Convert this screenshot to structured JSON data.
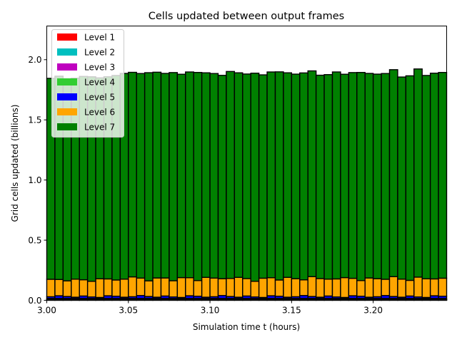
{
  "chart_data": {
    "type": "bar",
    "stacked": true,
    "title": "Cells updated between output frames",
    "xlabel": "Simulation time t (hours)",
    "ylabel": "Grid cells updated (billions)",
    "xlim": [
      3.0,
      3.245
    ],
    "ylim": [
      0.0,
      2.28
    ],
    "xticks": [
      3.0,
      3.05,
      3.1,
      3.15,
      3.2
    ],
    "xtick_labels": [
      "3.00",
      "3.05",
      "3.10",
      "3.15",
      "3.20"
    ],
    "yticks": [
      0.0,
      0.5,
      1.0,
      1.5,
      2.0
    ],
    "ytick_labels": [
      "0.0",
      "0.5",
      "1.0",
      "1.5",
      "2.0"
    ],
    "bar_width": 0.005,
    "legend_position": "upper-left",
    "x": [
      3.0025,
      3.0075,
      3.0125,
      3.0175,
      3.0225,
      3.0275,
      3.0325,
      3.0375,
      3.0425,
      3.0475,
      3.0525,
      3.0575,
      3.0625,
      3.0675,
      3.0725,
      3.0775,
      3.0825,
      3.0875,
      3.0925,
      3.0975,
      3.1025,
      3.1075,
      3.1125,
      3.1175,
      3.1225,
      3.1275,
      3.1325,
      3.1375,
      3.1425,
      3.1475,
      3.1525,
      3.1575,
      3.1625,
      3.1675,
      3.1725,
      3.1775,
      3.1825,
      3.1875,
      3.1925,
      3.1975,
      3.2025,
      3.2075,
      3.2125,
      3.2175,
      3.2225,
      3.2275,
      3.2325,
      3.2375,
      3.2425
    ],
    "series": [
      {
        "name": "Level 1",
        "color": "#ff0000",
        "values": [
          0.002,
          0.002,
          0.002,
          0.002,
          0.002,
          0.002,
          0.002,
          0.002,
          0.002,
          0.002,
          0.002,
          0.002,
          0.002,
          0.002,
          0.002,
          0.002,
          0.002,
          0.002,
          0.002,
          0.002,
          0.002,
          0.002,
          0.002,
          0.002,
          0.002,
          0.002,
          0.002,
          0.002,
          0.002,
          0.002,
          0.002,
          0.002,
          0.002,
          0.002,
          0.002,
          0.002,
          0.002,
          0.002,
          0.002,
          0.002,
          0.002,
          0.002,
          0.002,
          0.002,
          0.002,
          0.002,
          0.002,
          0.002,
          0.002
        ]
      },
      {
        "name": "Level 2",
        "color": "#00bfbf",
        "values": [
          0.002,
          0.002,
          0.002,
          0.002,
          0.002,
          0.002,
          0.002,
          0.002,
          0.002,
          0.002,
          0.002,
          0.002,
          0.002,
          0.002,
          0.002,
          0.002,
          0.002,
          0.002,
          0.002,
          0.002,
          0.002,
          0.002,
          0.002,
          0.002,
          0.002,
          0.002,
          0.002,
          0.002,
          0.002,
          0.002,
          0.002,
          0.002,
          0.002,
          0.002,
          0.002,
          0.002,
          0.002,
          0.002,
          0.002,
          0.002,
          0.002,
          0.002,
          0.002,
          0.002,
          0.002,
          0.002,
          0.002,
          0.002,
          0.002
        ]
      },
      {
        "name": "Level 3",
        "color": "#bf00bf",
        "values": [
          0.004,
          0.004,
          0.004,
          0.004,
          0.004,
          0.004,
          0.004,
          0.004,
          0.004,
          0.004,
          0.004,
          0.004,
          0.004,
          0.004,
          0.004,
          0.004,
          0.004,
          0.004,
          0.004,
          0.004,
          0.004,
          0.004,
          0.004,
          0.004,
          0.004,
          0.004,
          0.004,
          0.004,
          0.004,
          0.004,
          0.004,
          0.004,
          0.004,
          0.004,
          0.004,
          0.004,
          0.004,
          0.004,
          0.004,
          0.004,
          0.004,
          0.004,
          0.004,
          0.004,
          0.004,
          0.004,
          0.004,
          0.004,
          0.004
        ]
      },
      {
        "name": "Level 4",
        "color": "#32cd32",
        "values": [
          0.008,
          0.008,
          0.008,
          0.008,
          0.008,
          0.008,
          0.008,
          0.008,
          0.008,
          0.008,
          0.008,
          0.008,
          0.008,
          0.008,
          0.008,
          0.008,
          0.008,
          0.008,
          0.008,
          0.008,
          0.008,
          0.008,
          0.008,
          0.008,
          0.008,
          0.008,
          0.008,
          0.008,
          0.008,
          0.008,
          0.008,
          0.008,
          0.008,
          0.008,
          0.008,
          0.008,
          0.008,
          0.008,
          0.008,
          0.008,
          0.008,
          0.008,
          0.008,
          0.008,
          0.008,
          0.008,
          0.008,
          0.008,
          0.008
        ]
      },
      {
        "name": "Level 5",
        "color": "#0000ff",
        "values": [
          0.014,
          0.022,
          0.016,
          0.01,
          0.02,
          0.012,
          0.008,
          0.022,
          0.018,
          0.01,
          0.014,
          0.024,
          0.016,
          0.01,
          0.02,
          0.012,
          0.008,
          0.022,
          0.018,
          0.01,
          0.014,
          0.024,
          0.016,
          0.01,
          0.02,
          0.012,
          0.008,
          0.022,
          0.018,
          0.01,
          0.014,
          0.024,
          0.016,
          0.01,
          0.02,
          0.012,
          0.008,
          0.022,
          0.018,
          0.01,
          0.014,
          0.024,
          0.016,
          0.01,
          0.02,
          0.012,
          0.008,
          0.022,
          0.018
        ]
      },
      {
        "name": "Level 6",
        "color": "#ffa500",
        "values": [
          0.145,
          0.135,
          0.13,
          0.15,
          0.135,
          0.13,
          0.155,
          0.14,
          0.135,
          0.15,
          0.165,
          0.145,
          0.13,
          0.16,
          0.15,
          0.135,
          0.165,
          0.15,
          0.13,
          0.165,
          0.155,
          0.14,
          0.15,
          0.165,
          0.145,
          0.13,
          0.16,
          0.15,
          0.135,
          0.165,
          0.15,
          0.13,
          0.165,
          0.155,
          0.14,
          0.15,
          0.165,
          0.145,
          0.13,
          0.16,
          0.15,
          0.135,
          0.165,
          0.15,
          0.13,
          0.165,
          0.155,
          0.14,
          0.15
        ]
      },
      {
        "name": "Level 7",
        "color": "#008000",
        "values": [
          1.67,
          1.69,
          1.68,
          1.67,
          1.69,
          1.7,
          1.67,
          1.68,
          1.7,
          1.71,
          1.7,
          1.7,
          1.73,
          1.71,
          1.7,
          1.73,
          1.69,
          1.71,
          1.73,
          1.7,
          1.7,
          1.69,
          1.72,
          1.7,
          1.7,
          1.73,
          1.69,
          1.71,
          1.73,
          1.7,
          1.7,
          1.72,
          1.71,
          1.69,
          1.7,
          1.72,
          1.69,
          1.71,
          1.73,
          1.7,
          1.7,
          1.71,
          1.72,
          1.68,
          1.7,
          1.73,
          1.69,
          1.71,
          1.71
        ]
      }
    ]
  }
}
